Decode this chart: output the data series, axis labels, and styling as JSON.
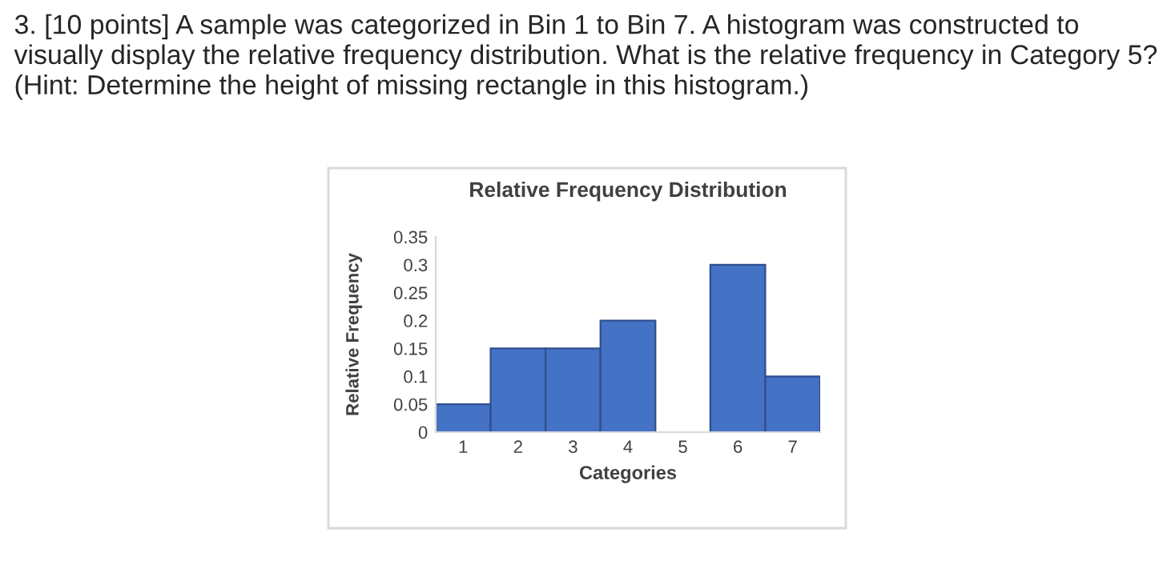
{
  "chart_data": {
    "type": "bar",
    "title": "Relative Frequency Distribution",
    "xlabel": "Categories",
    "ylabel": "Relative Frequency",
    "categories": [
      "1",
      "2",
      "3",
      "4",
      "5",
      "6",
      "7"
    ],
    "values": [
      0.05,
      0.15,
      0.15,
      0.2,
      null,
      0.3,
      0.1
    ],
    "color": "#4472c4",
    "ylim": [
      0,
      0.35
    ],
    "yticks": [
      0,
      0.05,
      0.1,
      0.15,
      0.2,
      0.25,
      0.3,
      0.35
    ],
    "grid": false,
    "annotations": [
      "3. [10 points] A sample was categorized in Bin 1 to Bin 7. A histogram was constructed to visually display the relative frequency distribution. What is the relative frequency in Category 5? (Hint: Determine the height of missing rectangle in this histogram.)"
    ]
  }
}
